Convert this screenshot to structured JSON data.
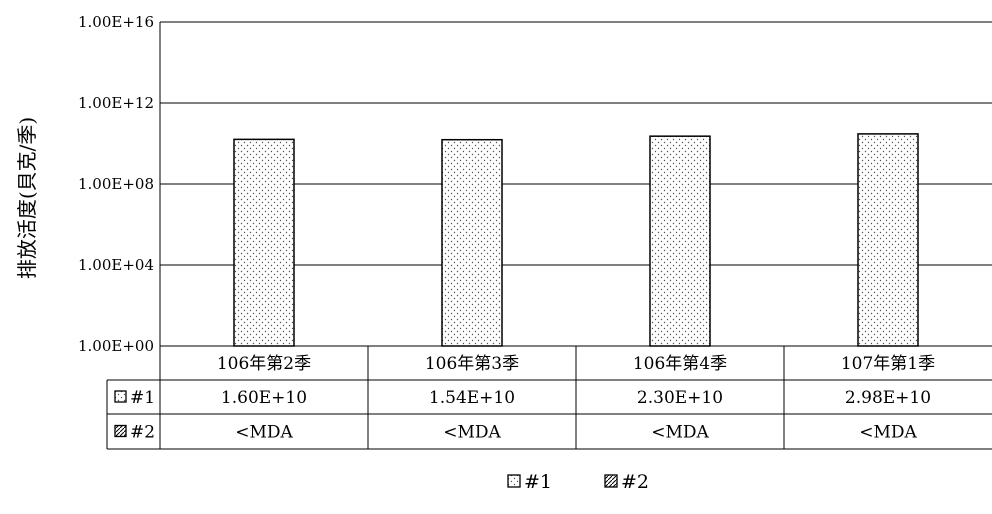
{
  "chart_data": {
    "type": "bar",
    "ylabel": "排放活度(貝克/季)",
    "yscale": "log",
    "ylim": [
      1,
      1e+16
    ],
    "y_ticks": [
      "1.00E+00",
      "1.00E+04",
      "1.00E+08",
      "1.00E+12",
      "1.00E+16"
    ],
    "grid": true,
    "categories": [
      "106年第2季",
      "106年第3季",
      "106年第4季",
      "107年第1季"
    ],
    "series": [
      {
        "name": "#1",
        "values": [
          16000000000,
          15400000000,
          23000000000,
          29800000000
        ],
        "labels": [
          "1.60E+10",
          "1.54E+10",
          "2.30E+10",
          "2.98E+10"
        ],
        "pattern": "dots"
      },
      {
        "name": "#2",
        "values": [
          null,
          null,
          null,
          null
        ],
        "labels": [
          "<MDA",
          "<MDA",
          "<MDA",
          "<MDA"
        ],
        "pattern": "diagonal"
      }
    ],
    "legend_position": "bottom",
    "data_table": true
  }
}
